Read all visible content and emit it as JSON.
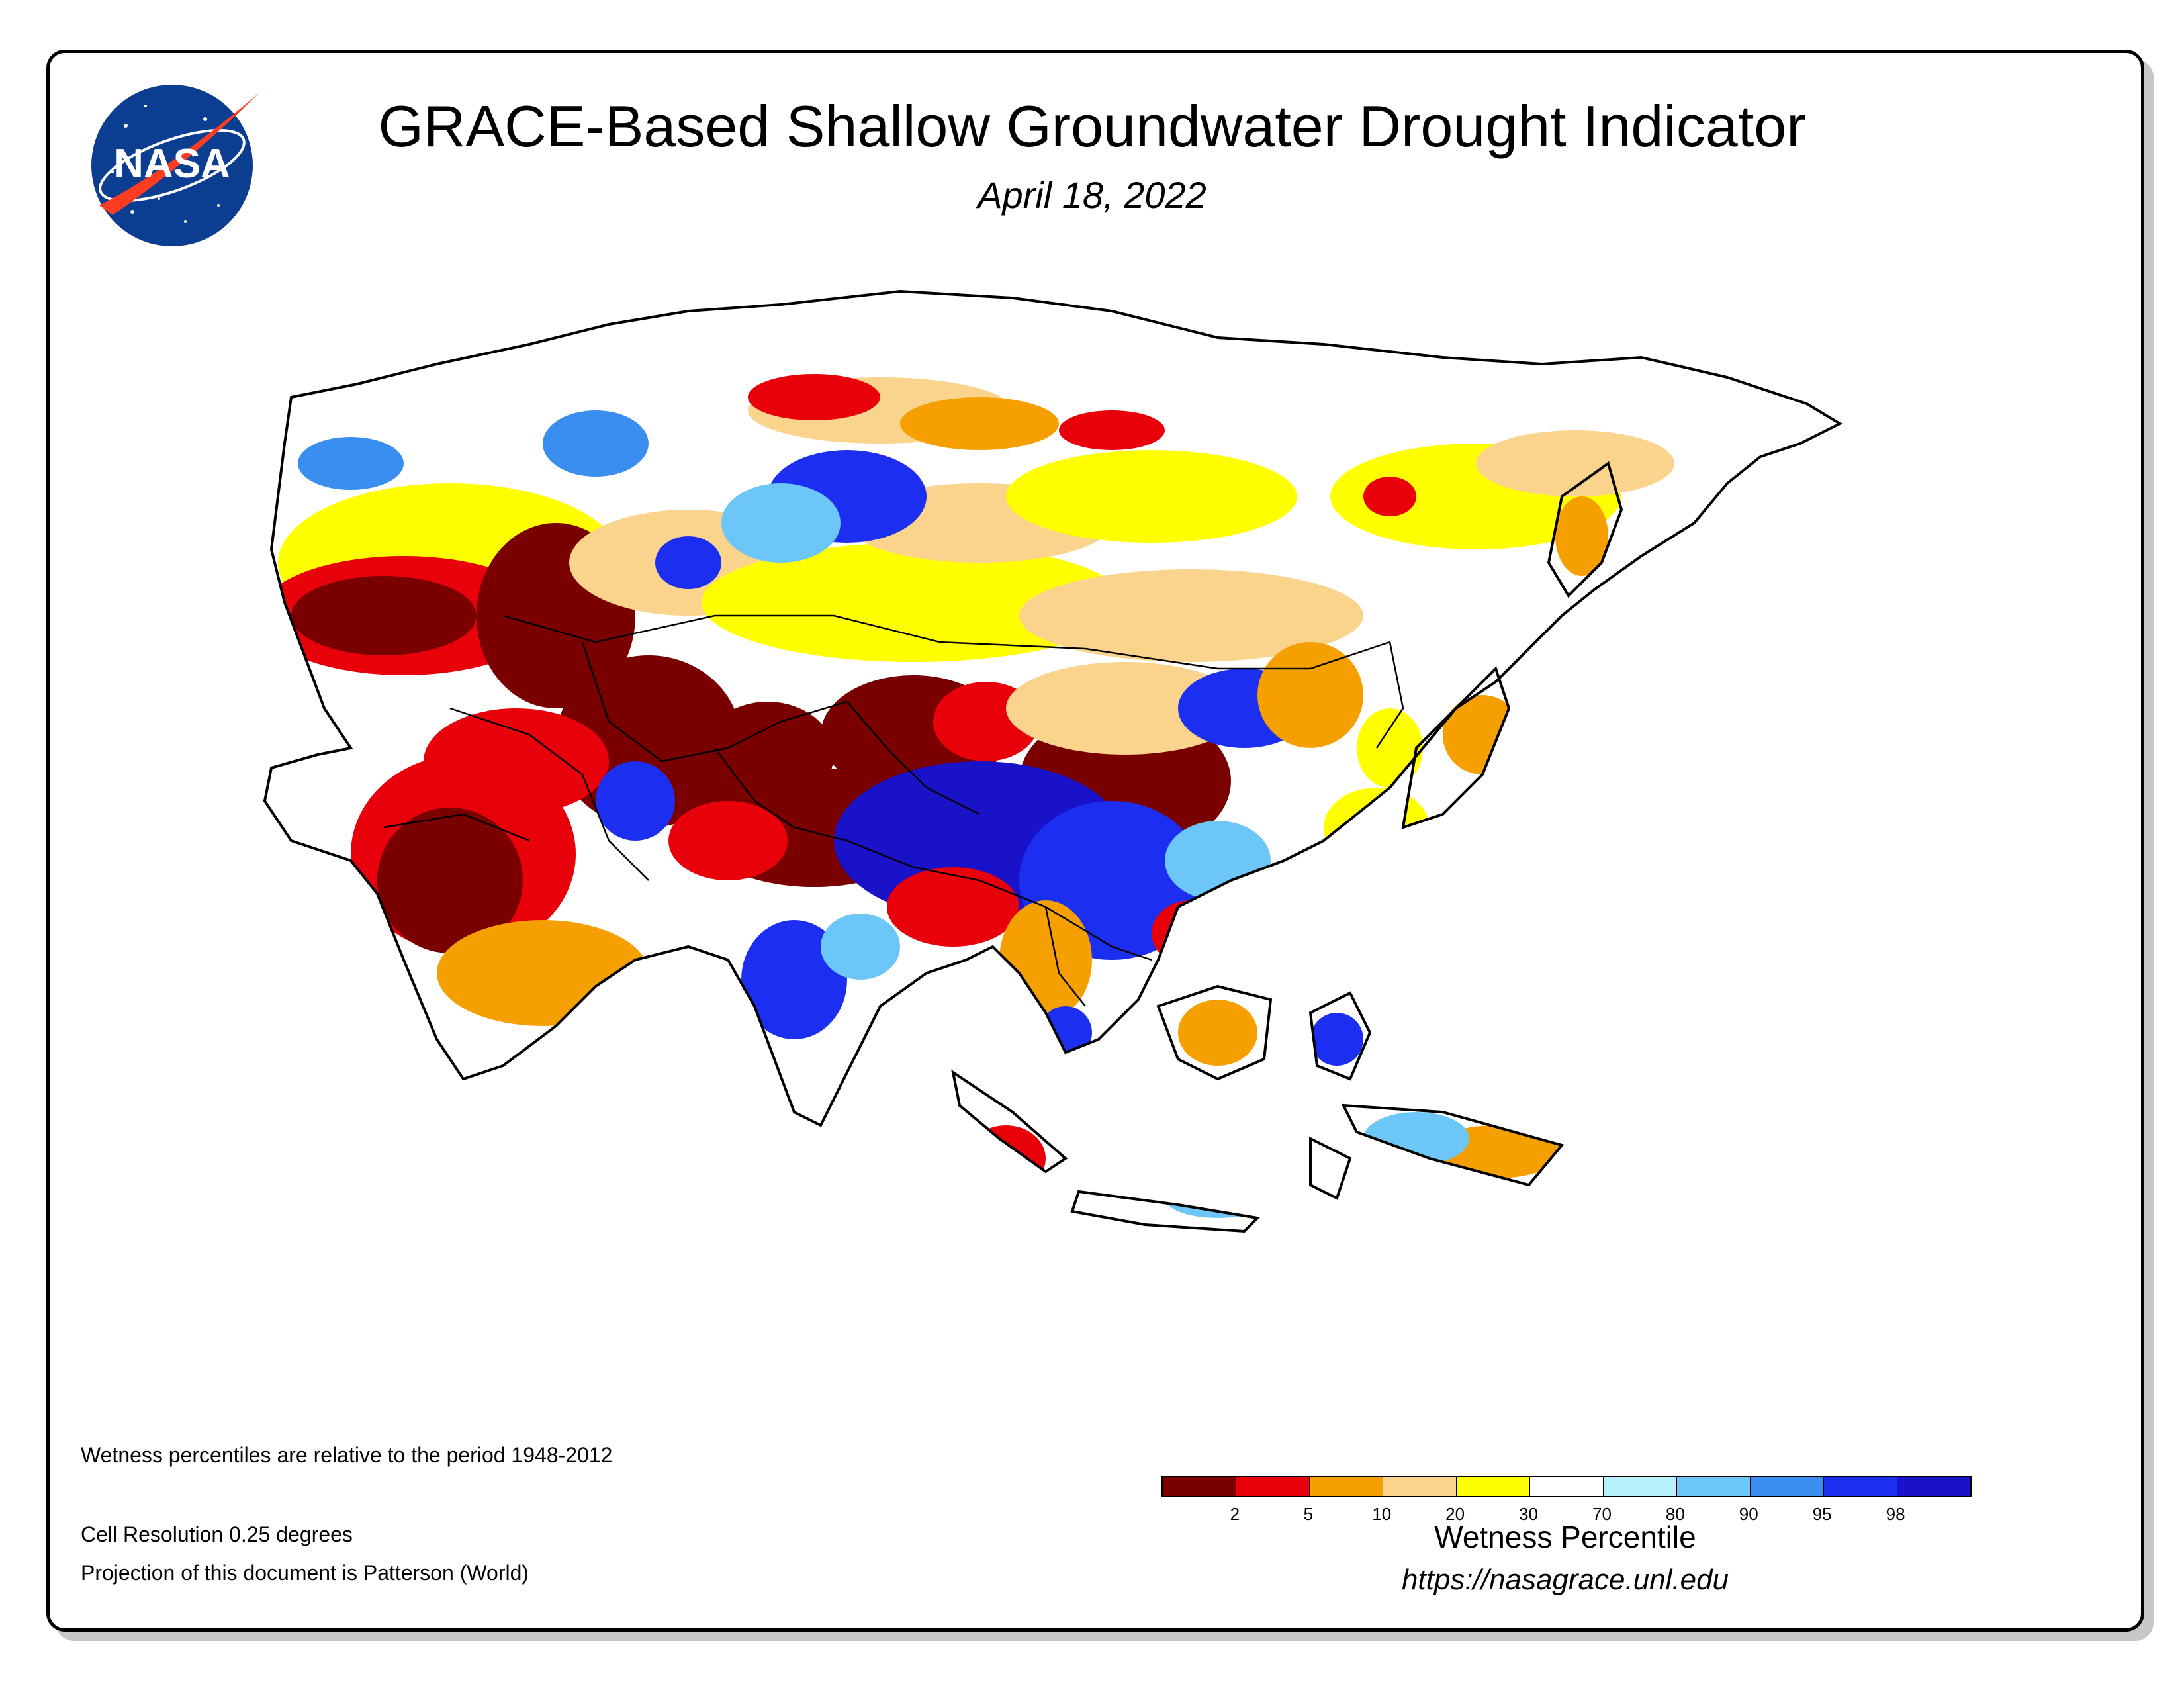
{
  "header": {
    "logo_text": "NASA",
    "title": "GRACE-Based Shallow Groundwater Drought Indicator",
    "date": "April 18, 2022"
  },
  "map": {
    "region": "Asia",
    "palette": {
      "p0_2": "#7a0000",
      "p2_5": "#e8000b",
      "p5_10": "#f5a000",
      "p10_20": "#fad38c",
      "p20_30": "#ffff00",
      "p30_70": "#ffffff",
      "p70_80": "#b8f2ff",
      "p80_90": "#6cc6f7",
      "p90_95": "#3a8ef0",
      "p95_98": "#1c2ff0",
      "p98_100": "#1a12c8"
    }
  },
  "notes": {
    "line1": "Wetness percentiles are relative to the period 1948-2012",
    "line2": "Cell Resolution 0.25 degrees",
    "line3": "Projection of this document is Patterson (World)"
  },
  "legend": {
    "title": "Wetness Percentile",
    "colors": [
      "#7a0000",
      "#e8000b",
      "#f5a000",
      "#fad38c",
      "#ffff00",
      "#ffffff",
      "#b8f2ff",
      "#6cc6f7",
      "#3a8ef0",
      "#1c2ff0",
      "#1a12c8"
    ],
    "ticks": [
      "2",
      "5",
      "10",
      "20",
      "30",
      "70",
      "80",
      "90",
      "95",
      "98"
    ]
  },
  "footer": {
    "url": "https://nasagrace.unl.edu"
  }
}
